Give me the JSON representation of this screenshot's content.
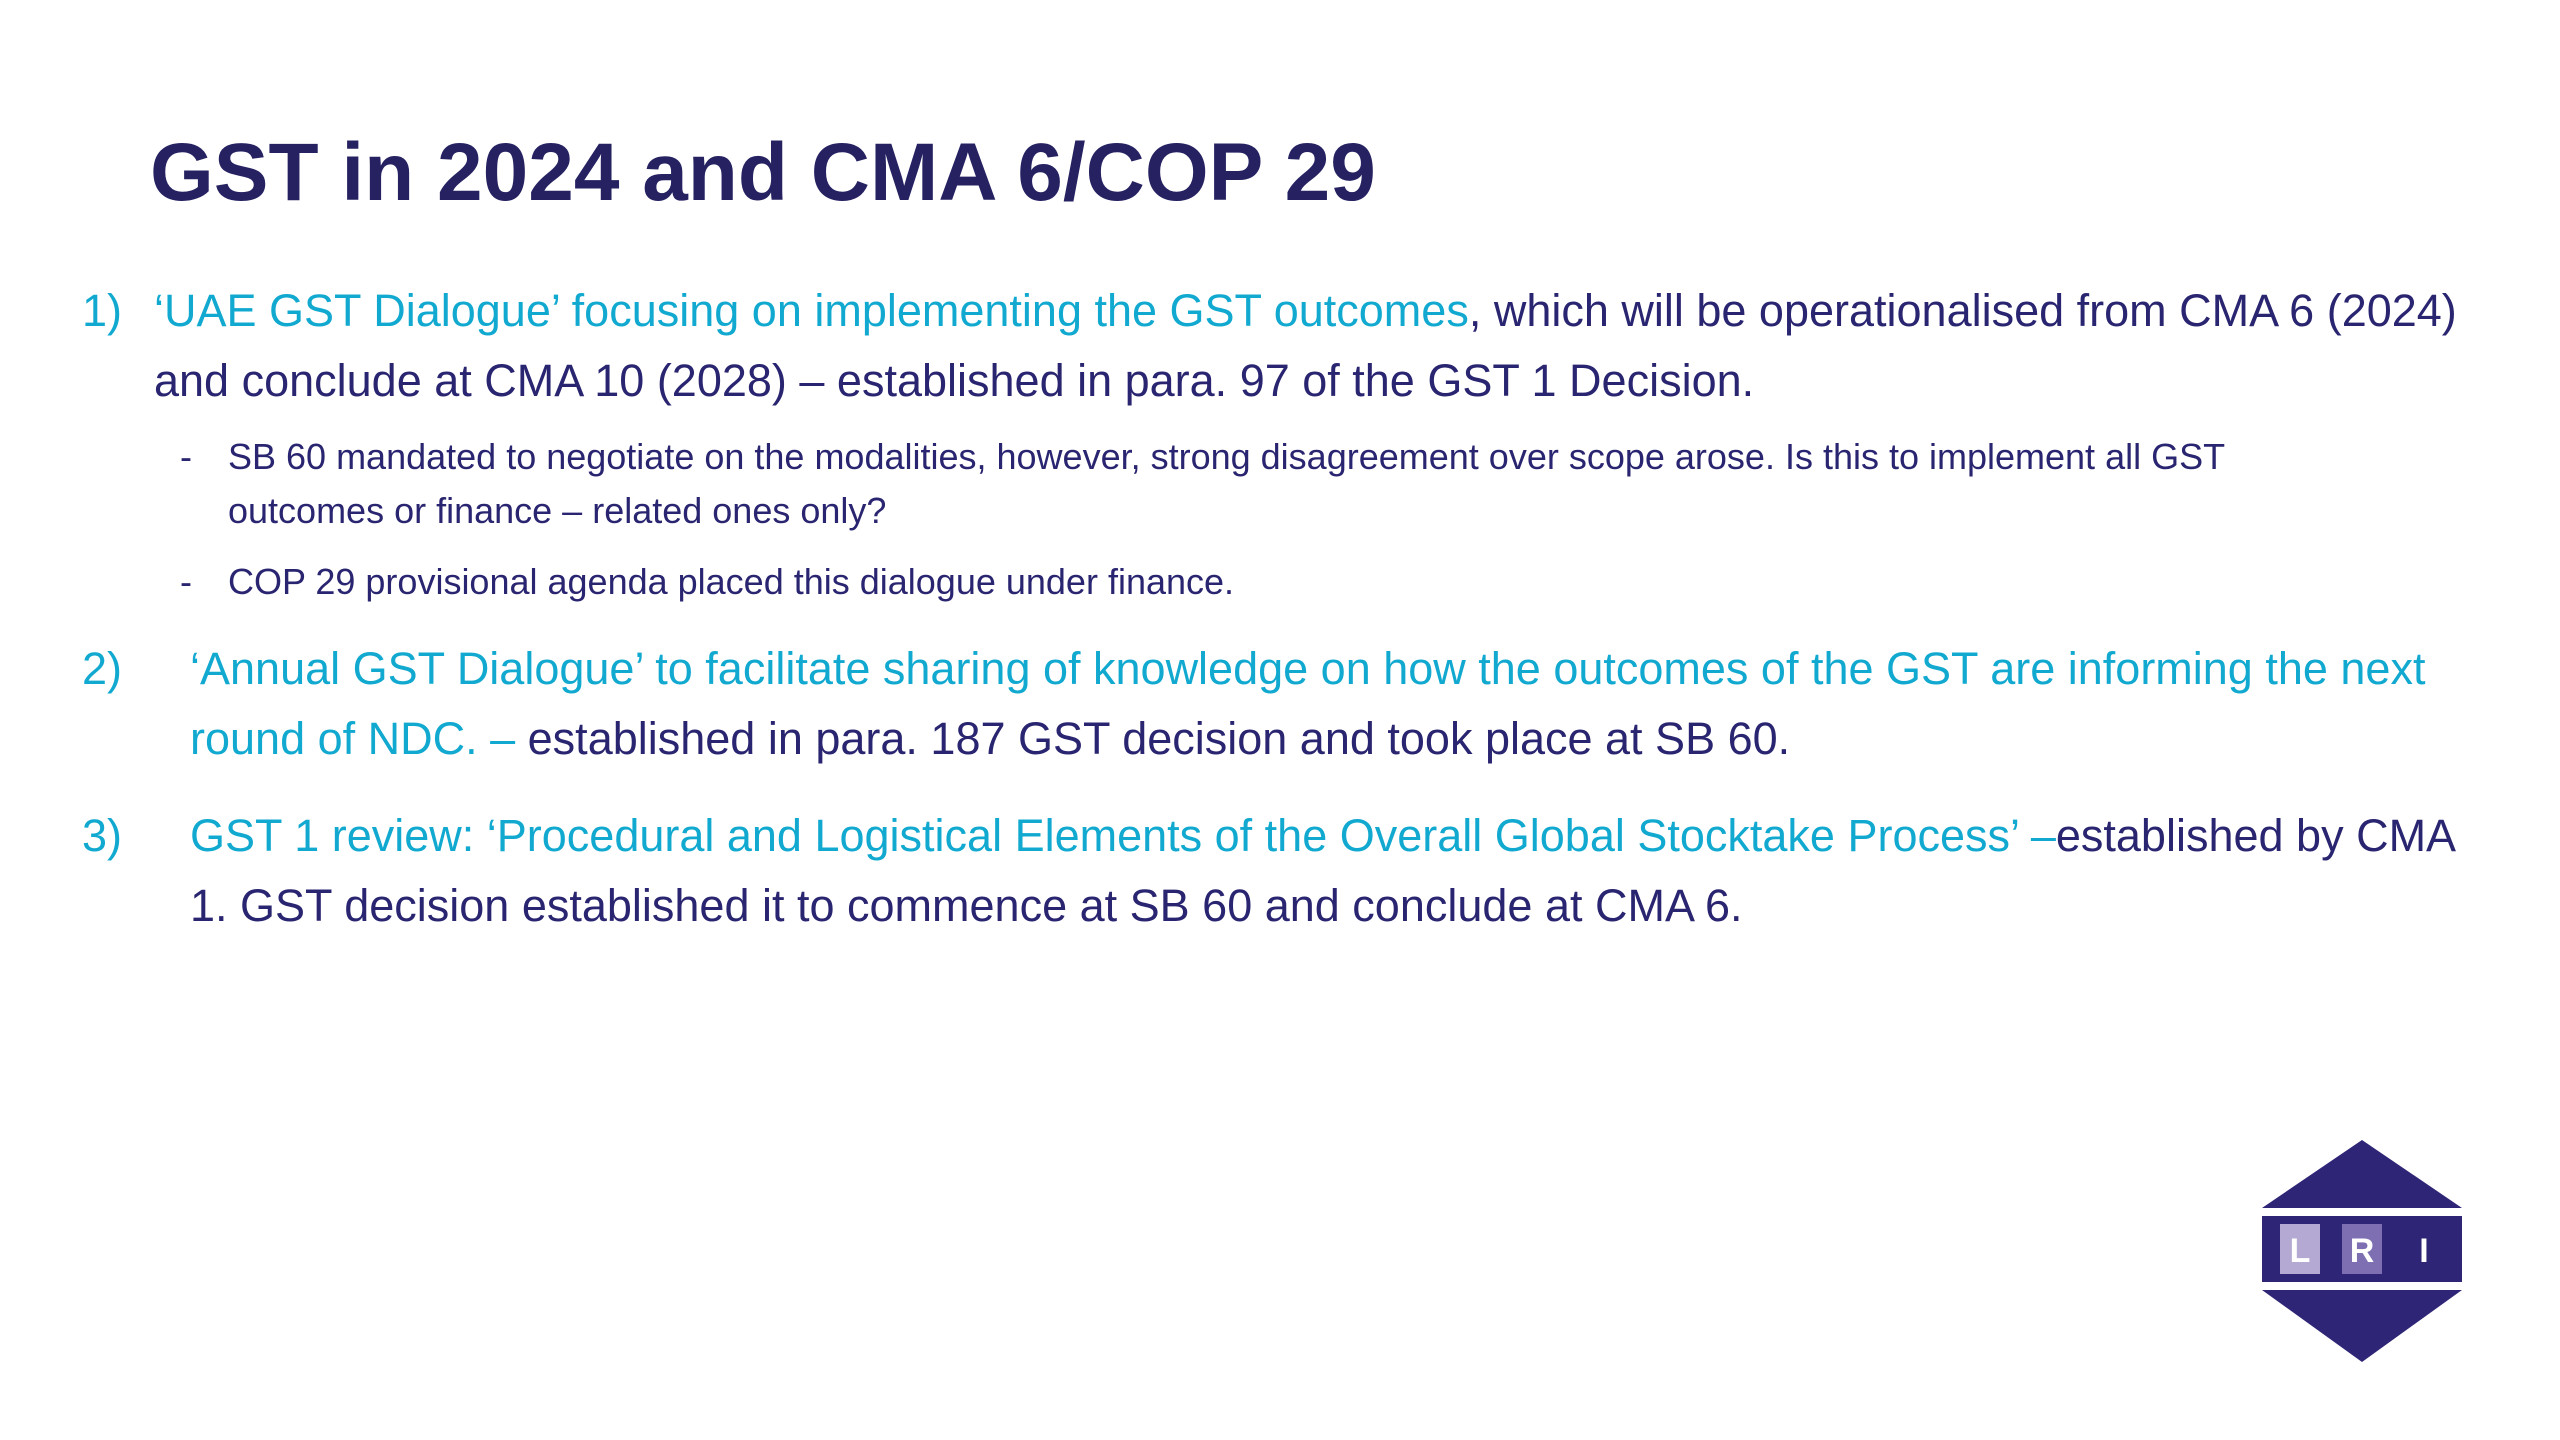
{
  "slide": {
    "title": "GST in 2024 and CMA 6/COP 29",
    "items": [
      {
        "number": "1)",
        "highlight": "‘UAE GST Dialogue’ focusing on implementing the GST outcomes",
        "rest": ", which will be operationalised from CMA 6 (2024) and conclude at CMA 10 (2028) – established in para. 97 of the GST 1 Decision.",
        "subitems": [
          {
            "marker": "-",
            "text": "SB 60 mandated to negotiate on the modalities, however, strong disagreement over scope arose. Is this to implement all GST outcomes or finance – related ones only?"
          },
          {
            "marker": "-",
            "text": "COP 29 provisional agenda placed this dialogue under finance."
          }
        ]
      },
      {
        "number": "2)",
        "highlight": "‘Annual GST Dialogue’ to facilitate sharing of knowledge on how the outcomes of the GST are informing the next round of NDC. –",
        "rest": " established in para. 187 GST decision and took place at SB 60."
      },
      {
        "number": "3)",
        "highlight": "GST 1 review: ‘Procedural and Logistical Elements of the Overall Global Stocktake Process’ –",
        "rest": "established by CMA 1. GST decision established it to commence at SB 60 and conclude at CMA 6."
      }
    ]
  },
  "logo": {
    "letters": [
      "L",
      "R",
      "I"
    ],
    "colors": {
      "navy": "#2e2576",
      "lavender": "#b3a9d2",
      "mid": "#7d6fb2"
    }
  },
  "colors": {
    "title": "#262262",
    "highlight": "#12a9d0",
    "body": "#2a2570"
  }
}
